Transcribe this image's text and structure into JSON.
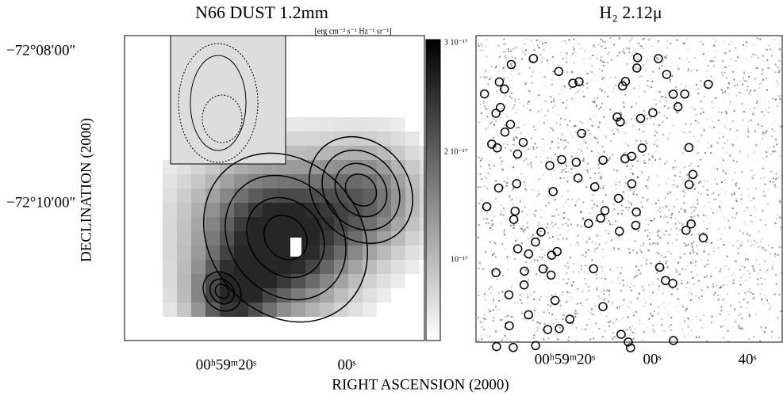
{
  "left_panel": {
    "title": "N66 DUST 1.2mm",
    "colorbar_unit": "[erg cm⁻² s⁻¹ Hz⁻¹ sr⁻¹]",
    "colorbar_ticks": [
      "3 10⁻¹⁷",
      "2 10⁻¹⁷",
      "10⁻¹⁷"
    ],
    "y_label": "DECLINATION (2000)",
    "y_ticks": [
      "−72°08′00″",
      "−72°10′00″"
    ],
    "x_ticks": [
      "00ʰ59ᵐ20ˢ",
      "00ˢ"
    ]
  },
  "right_panel": {
    "title": "H₂ 2.12μ",
    "x_ticks": [
      "00ʰ59ᵐ20ˢ",
      "00ˢ",
      "40ˢ"
    ]
  },
  "x_label": "RIGHT ASCENSION (2000)"
}
